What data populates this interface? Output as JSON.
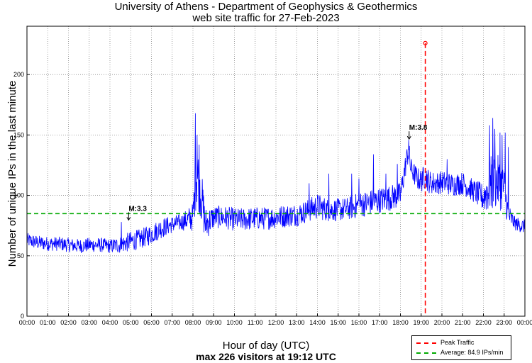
{
  "chart_data": {
    "type": "line",
    "title": "University of Athens - Department of Geophysics & Geothermics",
    "subtitle": "web site traffic for 27-Feb-2023",
    "xlabel": "Hour of day (UTC)",
    "caption": "max 226 visitors at 19:12 UTC",
    "ylabel": "Number of unique IPs in the last minute",
    "xlim": [
      0,
      24
    ],
    "ylim": [
      0,
      240
    ],
    "x_ticks": [
      "00:00",
      "01:00",
      "02:00",
      "03:00",
      "04:00",
      "05:00",
      "06:00",
      "07:00",
      "08:00",
      "09:00",
      "10:00",
      "11:00",
      "12:00",
      "13:00",
      "14:00",
      "15:00",
      "16:00",
      "17:00",
      "18:00",
      "19:00",
      "20:00",
      "21:00",
      "22:00",
      "23:00",
      "00:00"
    ],
    "y_ticks": [
      0,
      50,
      100,
      150,
      200
    ],
    "grid": true,
    "series": [
      {
        "name": "traffic",
        "color": "#0000ff",
        "hours": [
          0,
          0.5,
          1,
          1.5,
          2,
          2.5,
          3,
          3.5,
          4,
          4.5,
          5,
          5.5,
          6,
          6.5,
          7,
          7.5,
          8,
          8.15,
          8.3,
          8.6,
          9,
          9.5,
          10,
          10.5,
          11,
          11.5,
          12,
          12.5,
          13,
          13.5,
          14,
          14.5,
          15,
          15.5,
          16,
          16.5,
          17,
          17.5,
          18,
          18.3,
          18.4,
          18.5,
          18.8,
          19.0,
          19.2,
          19.4,
          19.7,
          20,
          20.5,
          21,
          21.5,
          22,
          22.3,
          22.6,
          23,
          23.2,
          23.5,
          24
        ],
        "mean": [
          63,
          61,
          60,
          60,
          59,
          58,
          59,
          59,
          58,
          59,
          62,
          64,
          68,
          73,
          76,
          78,
          82,
          118,
          112,
          76,
          82,
          82,
          80,
          80,
          81,
          81,
          82,
          83,
          84,
          87,
          91,
          88,
          88,
          89,
          92,
          94,
          96,
          98,
          100,
          130,
          137,
          122,
          114,
          112,
          116,
          111,
          110,
          111,
          109,
          110,
          104,
          98,
          108,
          112,
          106,
          84,
          77,
          74
        ],
        "spread": [
          5,
          5,
          5,
          5,
          5,
          5,
          5,
          5,
          5,
          6,
          7,
          7,
          7,
          7,
          6,
          6,
          10,
          24,
          22,
          12,
          8,
          8,
          8,
          8,
          8,
          8,
          8,
          8,
          8,
          8,
          9,
          8,
          8,
          8,
          9,
          9,
          9,
          9,
          9,
          8,
          8,
          8,
          8,
          8,
          9,
          8,
          8,
          8,
          8,
          8,
          8,
          10,
          20,
          20,
          16,
          8,
          5,
          5
        ],
        "spikes": [
          [
            4.55,
            78
          ],
          [
            8.12,
            168
          ],
          [
            8.2,
            150
          ],
          [
            8.3,
            142
          ],
          [
            13.6,
            110
          ],
          [
            14.55,
            118
          ],
          [
            15.65,
            118
          ],
          [
            16.0,
            114
          ],
          [
            16.7,
            134
          ],
          [
            17.3,
            118
          ],
          [
            17.85,
            126
          ],
          [
            18.4,
            146
          ],
          [
            19.05,
            120
          ],
          [
            20.25,
            130
          ],
          [
            22.3,
            158
          ],
          [
            22.45,
            164
          ],
          [
            22.55,
            155
          ],
          [
            22.8,
            152
          ],
          [
            22.9,
            150
          ],
          [
            23.05,
            152
          ],
          [
            23.2,
            140
          ]
        ]
      }
    ],
    "annotations": [
      {
        "label": "M:3.3",
        "hour": 4.9,
        "value": 79
      },
      {
        "label": "M:3.8",
        "hour": 18.42,
        "value": 146
      }
    ],
    "peak": {
      "label": "Peak Traffic",
      "hour": 19.2,
      "value": 226,
      "color": "#ff0000"
    },
    "average": {
      "label": "Average: 84.9 IPs/min",
      "value": 84.9,
      "color": "#00aa00"
    },
    "legend_position": "bottom-right"
  }
}
